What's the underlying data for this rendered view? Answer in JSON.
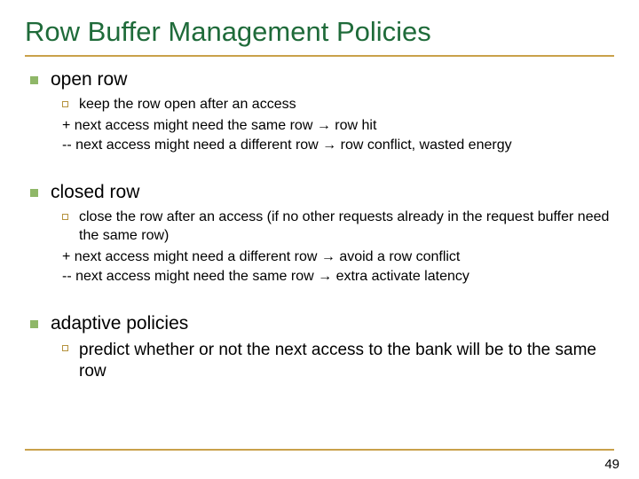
{
  "title": "Row Buffer Management Policies",
  "colors": {
    "title_color": "#1f6b3a",
    "underline_color": "#c9a14a",
    "bullet_l1_color": "#8fb768",
    "bullet_l2_border": "#b5923d",
    "background": "#ffffff",
    "text_color": "#000000"
  },
  "typography": {
    "title_fontsize": 31,
    "l1_fontsize": 21,
    "l2_fontsize": 16,
    "l2_large_fontsize": 19,
    "page_num_fontsize": 15
  },
  "sections": {
    "open_row": {
      "heading": "open row",
      "sub": "keep the row open after an access",
      "plus": "+ next access might need the same row → row hit",
      "minus": "-- next access might need a different row → row conflict, wasted energy"
    },
    "closed_row": {
      "heading": "closed row",
      "sub": "close the row after an access (if no other requests already in the request buffer need the same row)",
      "plus": "+ next access might need a different row → avoid a row conflict",
      "minus": "-- next access might need the same row → extra activate latency"
    },
    "adaptive": {
      "heading": "adaptive policies",
      "sub": "predict whether or not the next access to the bank will be to the same row"
    }
  },
  "page_number": "49"
}
